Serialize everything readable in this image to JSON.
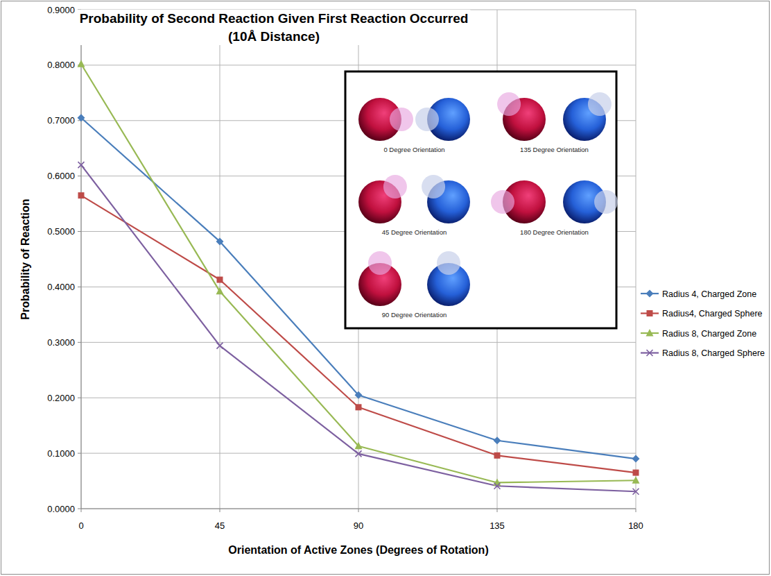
{
  "chart_data": {
    "type": "line",
    "title": "Probability of Second Reaction Given First Reaction Occurred",
    "subtitle": "(10Å Distance)",
    "x_label": "Orientation of Active Zones (Degrees of Rotation)",
    "y_label": "Probability of Reaction",
    "x": [
      0,
      45,
      90,
      135,
      180
    ],
    "xlim": [
      0,
      180
    ],
    "xticks": [
      0,
      45,
      90,
      135,
      180
    ],
    "ylim": [
      0,
      0.9
    ],
    "yticks": [
      {
        "value": 0,
        "label": "0.0000"
      },
      {
        "value": 0.1,
        "label": "0.1000"
      },
      {
        "value": 0.2,
        "label": "0.2000"
      },
      {
        "value": 0.3,
        "label": "0.3000"
      },
      {
        "value": 0.4,
        "label": "0.4000"
      },
      {
        "value": 0.5,
        "label": "0.5000"
      },
      {
        "value": 0.6,
        "label": "0.6000"
      },
      {
        "value": 0.7,
        "label": "0.7000"
      },
      {
        "value": 0.8,
        "label": "0.8000"
      },
      {
        "value": 0.9,
        "label": "0.9000"
      }
    ],
    "grid": true,
    "legend": "right",
    "series": [
      {
        "name": "Radius 4, Charged Zone",
        "color": "#4a7ebb",
        "marker": "diamond",
        "line_style": "solid",
        "values": [
          0.705,
          0.482,
          0.205,
          0.123,
          0.09
        ]
      },
      {
        "name": "Radius4, Charged Sphere",
        "color": "#be4b48",
        "marker": "square",
        "line_style": "solid",
        "values": [
          0.565,
          0.413,
          0.183,
          0.096,
          0.065
        ]
      },
      {
        "name": "Radius 8, Charged Zone",
        "color": "#98b954",
        "marker": "triangle",
        "line_style": "solid",
        "values": [
          0.802,
          0.392,
          0.113,
          0.047,
          0.051
        ]
      },
      {
        "name": "Radius 8, Charged Sphere",
        "color": "#7d60a0",
        "marker": "x",
        "line_style": "solid",
        "values": [
          0.62,
          0.294,
          0.099,
          0.041,
          0.031
        ]
      }
    ],
    "annotations": [
      "0 Degree Orientation",
      "45 Degree Orientation",
      "90 Degree Orientation",
      "135 Degree Orientation",
      "180 Degree Orientation"
    ]
  }
}
